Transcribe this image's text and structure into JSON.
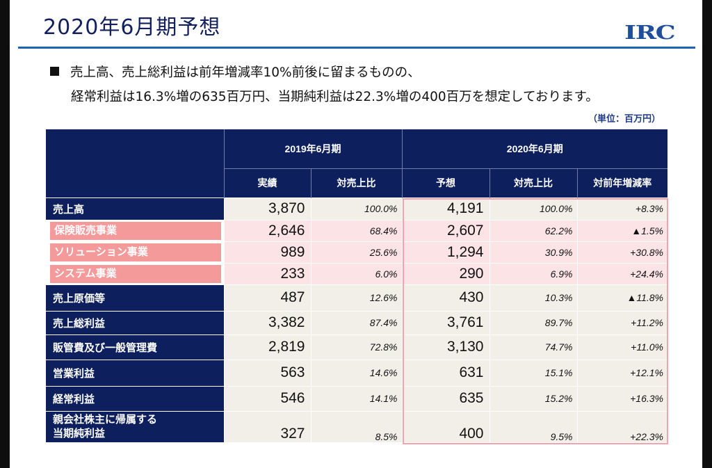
{
  "header": {
    "title": "2020年6月期予想",
    "logo": "IRC"
  },
  "summary": {
    "line1": "売上高、売上総利益は前年増減率10%前後に留まるものの、",
    "line2": "経常利益は16.3%増の635百万円、当期純利益は22.3%増の400百万を想定しております。",
    "unit": "（単位：百万円）"
  },
  "table": {
    "group_2019": "2019年6月期",
    "group_2020": "2020年6月期",
    "columns": [
      "実績",
      "対売上比",
      "予想",
      "対売上比",
      "対前年増減率"
    ],
    "rows": [
      {
        "label": "売上高",
        "sub": false,
        "v2019": "3,870",
        "p2019": "100.0%",
        "v2020": "4,191",
        "p2020": "100.0%",
        "yoy": "+8.3%"
      },
      {
        "label": "保険販売事業",
        "sub": true,
        "v2019": "2,646",
        "p2019": "68.4%",
        "v2020": "2,607",
        "p2020": "62.2%",
        "yoy": "▲1.5%"
      },
      {
        "label": "ソリューション事業",
        "sub": true,
        "v2019": "989",
        "p2019": "25.6%",
        "v2020": "1,294",
        "p2020": "30.9%",
        "yoy": "+30.8%"
      },
      {
        "label": "システム事業",
        "sub": true,
        "v2019": "233",
        "p2019": "6.0%",
        "v2020": "290",
        "p2020": "6.9%",
        "yoy": "+24.4%"
      },
      {
        "label": "売上原価等",
        "sub": false,
        "v2019": "487",
        "p2019": "12.6%",
        "v2020": "430",
        "p2020": "10.3%",
        "yoy": "▲11.8%"
      },
      {
        "label": "売上総利益",
        "sub": false,
        "v2019": "3,382",
        "p2019": "87.4%",
        "v2020": "3,761",
        "p2020": "89.7%",
        "yoy": "+11.2%"
      },
      {
        "label": "販管費及び一般管理費",
        "sub": false,
        "v2019": "2,819",
        "p2019": "72.8%",
        "v2020": "3,130",
        "p2020": "74.7%",
        "yoy": "+11.0%"
      },
      {
        "label": "営業利益",
        "sub": false,
        "v2019": "563",
        "p2019": "14.6%",
        "v2020": "631",
        "p2020": "15.1%",
        "yoy": "+12.1%"
      },
      {
        "label": "経常利益",
        "sub": false,
        "v2019": "546",
        "p2019": "14.1%",
        "v2020": "635",
        "p2020": "15.2%",
        "yoy": "+16.3%"
      },
      {
        "label": "親会社株主に帰属する当期純利益",
        "label_lines": [
          "親会社株主に帰属する",
          "当期純利益"
        ],
        "sub": false,
        "v2019": "327",
        "p2019": "8.5%",
        "v2020": "400",
        "p2020": "9.5%",
        "yoy": "+22.3%"
      }
    ]
  },
  "colors": {
    "navy": "#0d1f5c",
    "rule_blue": "#1b63b8",
    "segment_pink": "#f59a9a",
    "row_pink": "#fbe3e6",
    "cell_beige": "#f1efe7",
    "highlight_border": "#f4a2ae"
  }
}
